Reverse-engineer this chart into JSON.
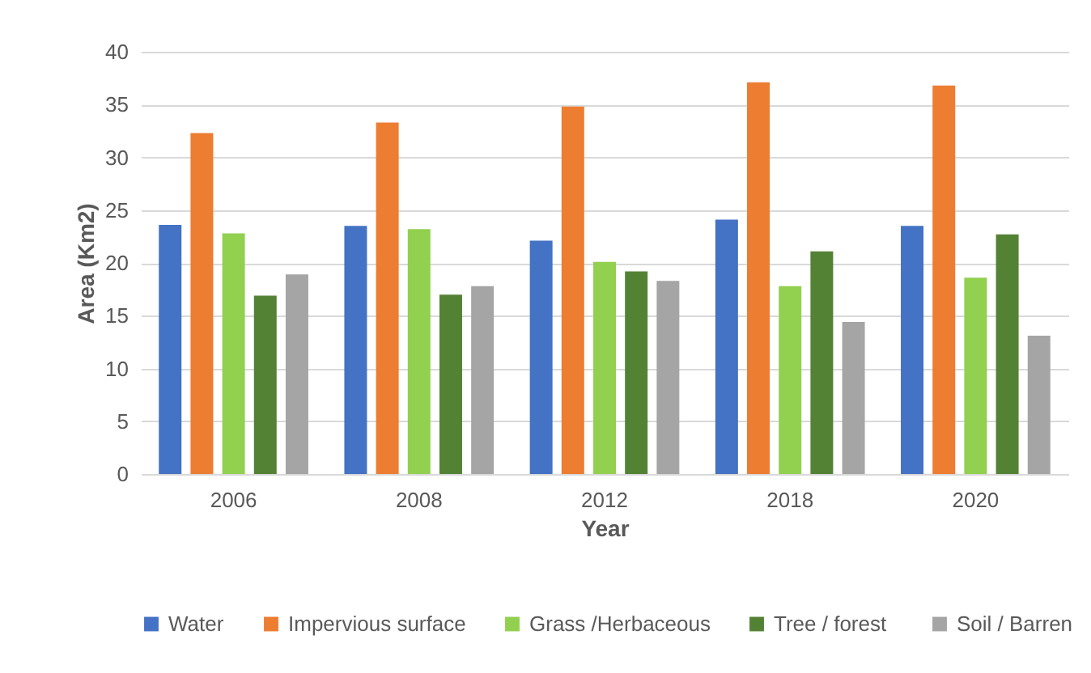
{
  "chart_data": {
    "type": "bar",
    "xlabel": "Year",
    "ylabel": "Area (Km2)",
    "categories": [
      "2006",
      "2008",
      "2012",
      "2018",
      "2020"
    ],
    "series": [
      {
        "name": "Water",
        "color": "#4472c4",
        "values": [
          23.6,
          23.5,
          22.1,
          24.1,
          23.5
        ]
      },
      {
        "name": "Impervious surface",
        "color": "#ed7d31",
        "values": [
          32.3,
          33.3,
          34.8,
          37.1,
          36.8
        ]
      },
      {
        "name": "Grass /Herbaceous",
        "color": "#92d050",
        "values": [
          22.8,
          23.2,
          20.1,
          17.8,
          18.6
        ]
      },
      {
        "name": "Tree /  forest",
        "color": "#548235",
        "values": [
          16.9,
          17.0,
          19.2,
          21.1,
          22.7
        ]
      },
      {
        "name": "Soil / Barren",
        "color": "#a5a5a5",
        "values": [
          18.9,
          17.8,
          18.3,
          14.4,
          13.1
        ]
      }
    ],
    "ylim": [
      0,
      40
    ],
    "yticks": [
      0,
      5,
      10,
      15,
      20,
      25,
      30,
      35,
      40
    ],
    "grid": "y",
    "legend": "bottom"
  }
}
